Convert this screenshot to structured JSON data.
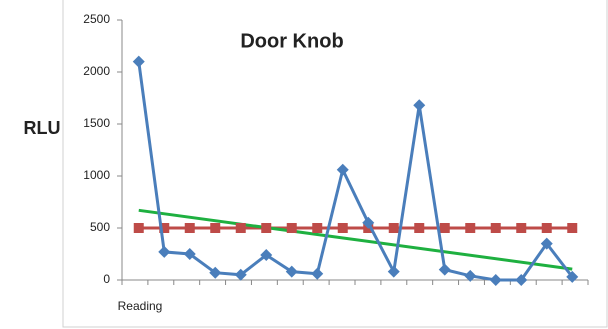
{
  "chart_data": {
    "type": "line",
    "title": "Door Knob",
    "y_label": "RLU",
    "x_label": "Reading",
    "categories": [
      null,
      null,
      null,
      null,
      null,
      null,
      null,
      null,
      null,
      null,
      null,
      null,
      null,
      null,
      null,
      null,
      null,
      null
    ],
    "series": [
      {
        "color": "#4a7ebb",
        "marker": "diamond",
        "values": [
          2100,
          270,
          250,
          70,
          50,
          240,
          80,
          60,
          1060,
          550,
          80,
          1680,
          100,
          40,
          0,
          0,
          350,
          30
        ]
      },
      {
        "color": "#be4b48",
        "marker": "square",
        "values": [
          500,
          500,
          500,
          500,
          500,
          500,
          500,
          500,
          500,
          500,
          500,
          500,
          500,
          500,
          500,
          500,
          500,
          500
        ]
      }
    ],
    "trendline": {
      "color": "#1eb040",
      "values": [
        670,
        105
      ]
    },
    "ylim": [
      0,
      2500
    ],
    "yticks": [
      0,
      500,
      1000,
      1500,
      2000,
      2500
    ],
    "grid": false
  }
}
